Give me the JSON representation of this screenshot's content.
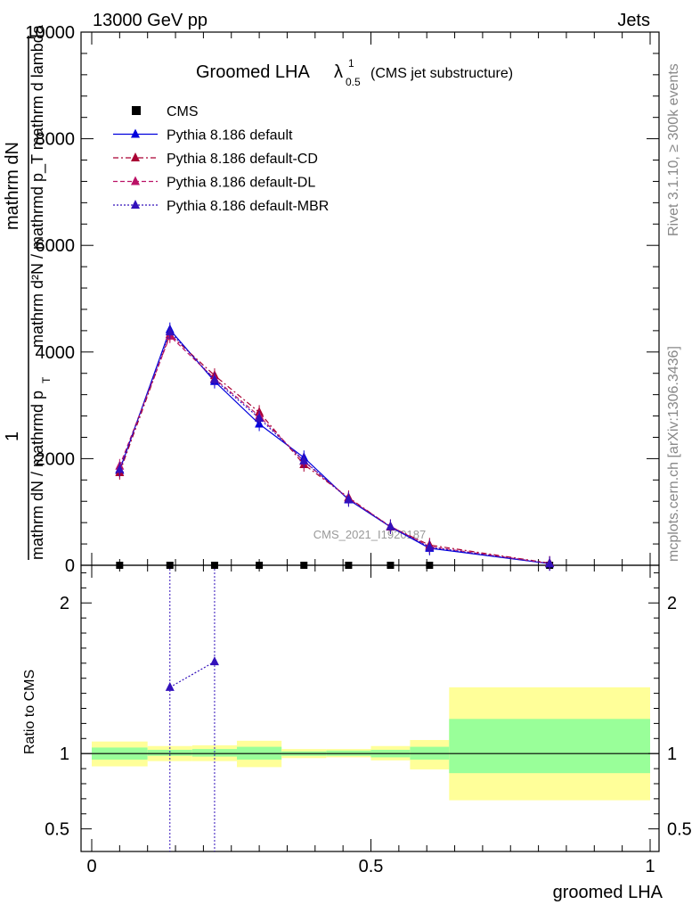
{
  "header": {
    "energy_label": "13000 GeV pp",
    "category": "Jets"
  },
  "side_labels": {
    "rivet": "Rivet 3.1.10, ≥ 300k events",
    "mcplots": "mcplots.cern.ch [arXiv:1306.3436]"
  },
  "colors": {
    "cms": "#000000",
    "default": "#0000dd",
    "default_cd": "#aa0033",
    "default_dl": "#bb1166",
    "default_mbr": "#3311bb",
    "band_outer": "#ffff99",
    "band_inner": "#99ff99"
  },
  "chart_data": [
    {
      "type": "line",
      "title_main": "Groomed LHA",
      "title_symbol": "λ",
      "title_sup": "1",
      "title_sub": "0.5",
      "title_suffix": "(CMS jet substructure)",
      "ylabel_num": "1",
      "ylabel_num_rest": "mathrm dN",
      "ylabel_den_rest": "mathrm dN / mathrmd p",
      "ylabel_den_sub": "T",
      "ylabel_full": "mathrm d²N / mathrmd p_T mathrm d lambda",
      "watermark": "CMS_2021_I1920187",
      "xlim": [
        0,
        1
      ],
      "ylim": [
        0,
        10000
      ],
      "y_ticks": [
        0,
        2000,
        4000,
        6000,
        8000,
        10000
      ],
      "y_tick_labels": [
        "0",
        "2000",
        "4000",
        "6000",
        "8000",
        "10000"
      ],
      "legend_position": "top-left",
      "series": [
        {
          "name": "CMS",
          "style": "markers",
          "x": [
            0.05,
            0.14,
            0.22,
            0.3,
            0.38,
            0.46,
            0.535,
            0.605,
            0.82
          ],
          "values": [
            0,
            0,
            0,
            0,
            0,
            0,
            0,
            0,
            0
          ]
        },
        {
          "name": "Pythia 8.186 default",
          "style": "solid",
          "x": [
            0.05,
            0.14,
            0.22,
            0.3,
            0.38,
            0.46,
            0.535,
            0.605,
            0.82
          ],
          "values": [
            1780,
            4420,
            3450,
            2650,
            2020,
            1230,
            720,
            320,
            30
          ]
        },
        {
          "name": "Pythia 8.186 default-CD",
          "style": "dashdot",
          "x": [
            0.05,
            0.14,
            0.22,
            0.3,
            0.38,
            0.46,
            0.535,
            0.605,
            0.82
          ],
          "values": [
            1740,
            4330,
            3560,
            2870,
            1890,
            1270,
            720,
            380,
            40
          ]
        },
        {
          "name": "Pythia 8.186 default-DL",
          "style": "dashed",
          "x": [
            0.05,
            0.14,
            0.22,
            0.3,
            0.38,
            0.46,
            0.535,
            0.605,
            0.82
          ],
          "values": [
            1860,
            4300,
            3500,
            2800,
            1950,
            1250,
            730,
            350,
            35
          ]
        },
        {
          "name": "Pythia 8.186 default-MBR",
          "style": "dotted",
          "x": [
            0.05,
            0.14,
            0.22,
            0.3,
            0.38,
            0.46,
            0.535,
            0.605,
            0.82
          ],
          "values": [
            1800,
            4380,
            3480,
            2760,
            1960,
            1240,
            725,
            340,
            32
          ]
        }
      ]
    },
    {
      "type": "line",
      "ylabel": "Ratio to CMS",
      "xlabel": "groomed LHA",
      "xlim": [
        0,
        1
      ],
      "ylim": [
        0.35,
        2.25
      ],
      "x_ticks": [
        0,
        0.5,
        1
      ],
      "x_tick_labels": [
        "0",
        "0.5",
        "1"
      ],
      "y_ticks": [
        0.5,
        1,
        2
      ],
      "y_tick_labels": [
        "0.5",
        "1",
        "2"
      ],
      "bands": {
        "bin_edges": [
          0,
          0.1,
          0.18,
          0.26,
          0.34,
          0.42,
          0.5,
          0.57,
          0.64,
          1.0
        ],
        "outer_lo": [
          0.915,
          0.95,
          0.95,
          0.91,
          0.97,
          0.975,
          0.955,
          0.895,
          0.69
        ],
        "outer_hi": [
          1.08,
          1.05,
          1.055,
          1.085,
          1.03,
          1.03,
          1.05,
          1.09,
          1.44
        ],
        "inner_lo": [
          0.96,
          0.985,
          0.98,
          0.96,
          0.985,
          0.985,
          0.975,
          0.96,
          0.87
        ],
        "inner_hi": [
          1.04,
          1.025,
          1.03,
          1.045,
          1.015,
          1.02,
          1.025,
          1.045,
          1.23
        ]
      },
      "series": [
        {
          "name": "Pythia 8.186 default-MBR",
          "style": "dotted",
          "x": [
            0.14,
            0.22
          ],
          "values": [
            1.44,
            1.61
          ]
        }
      ]
    }
  ]
}
